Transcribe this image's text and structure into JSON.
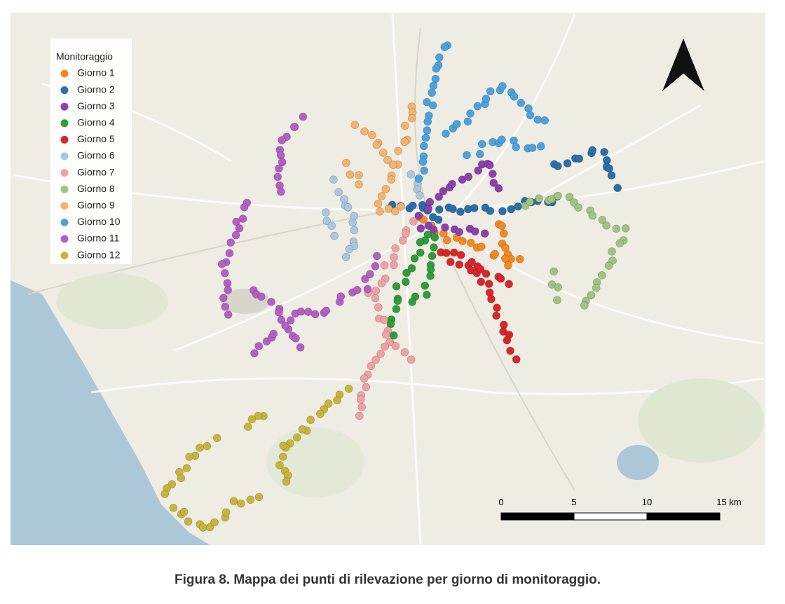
{
  "legend": {
    "title": "Monitoraggio",
    "items": [
      {
        "label": "Giorno 1",
        "color": "#f5891f"
      },
      {
        "label": "Giorno 2",
        "color": "#2a6fad"
      },
      {
        "label": "Giorno 3",
        "color": "#8e3fb0"
      },
      {
        "label": "Giorno 4",
        "color": "#2e9e3a"
      },
      {
        "label": "Giorno 5",
        "color": "#d9262b"
      },
      {
        "label": "Giorno 6",
        "color": "#a8c8e0"
      },
      {
        "label": "Giorno 7",
        "color": "#f1a1a4"
      },
      {
        "label": "Giorno 8",
        "color": "#9fc47f"
      },
      {
        "label": "Giorno 9",
        "color": "#f5b36b"
      },
      {
        "label": "Giorno 10",
        "color": "#4aa3df"
      },
      {
        "label": "Giorno 11",
        "color": "#b45fc6"
      },
      {
        "label": "Giorno 12",
        "color": "#c9b43a"
      }
    ]
  },
  "scale_bar": {
    "labels": [
      "0",
      "5",
      "10",
      "15 km"
    ]
  },
  "caption": "Figura 8. Mappa dei punti di rilevazione per giorno di monitoraggio."
}
